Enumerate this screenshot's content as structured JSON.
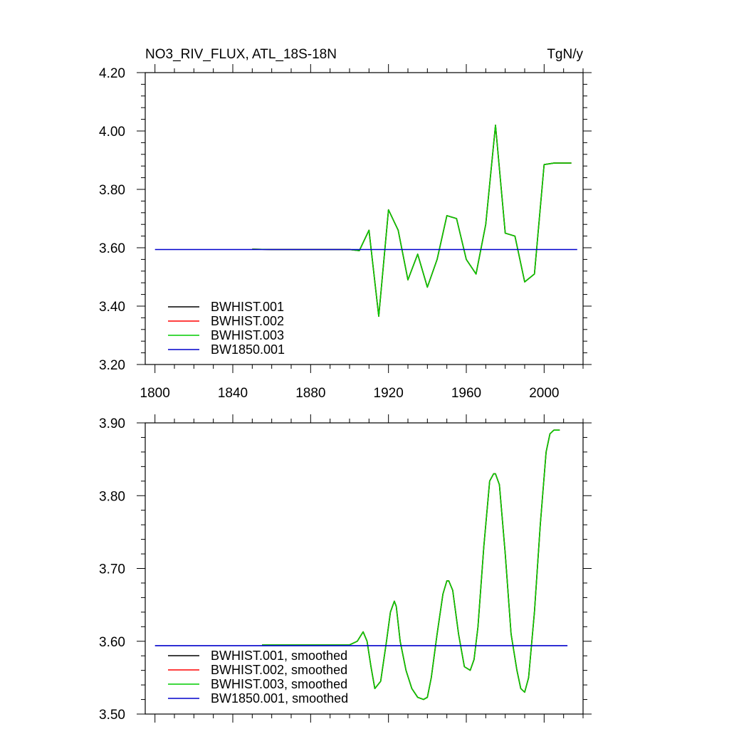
{
  "figure": {
    "title_left": "NO3_RIV_FLUX, ATL_18S-18N",
    "title_right": "TgN/y"
  },
  "colors": {
    "BWHIST.001": "#000000",
    "BWHIST.002": "#ff0000",
    "BWHIST.003": "#00cc00",
    "BW1850.001": "#0000cc"
  },
  "chart_data": [
    {
      "type": "line",
      "title": "NO3_RIV_FLUX, ATL_18S-18N",
      "units": "TgN/y",
      "xlim": [
        1795,
        2020
      ],
      "ylim": [
        3.2,
        4.2
      ],
      "xticks": [
        1800,
        1840,
        1880,
        1920,
        1960,
        2000
      ],
      "xtick_labels": [
        "1800",
        "1840",
        "1880",
        "1920",
        "1960",
        "2000"
      ],
      "yticks": [
        3.2,
        3.4,
        3.6,
        3.8,
        4.0,
        4.2
      ],
      "ytick_labels": [
        "3.20",
        "3.40",
        "3.60",
        "3.80",
        "4.00",
        "4.20"
      ],
      "legend_position": "bottom-left",
      "grid": false,
      "series": [
        {
          "name": "BWHIST.001",
          "color": "#000000",
          "x": [
            1850,
            1860,
            1870,
            1880,
            1890,
            1900,
            1905,
            1910,
            1915,
            1920,
            1925,
            1930,
            1935,
            1940,
            1945,
            1950,
            1955,
            1960,
            1965,
            1970,
            1975,
            1980,
            1985,
            1990,
            1995,
            2000,
            2005,
            2010,
            2014
          ],
          "y": [
            3.595,
            3.594,
            3.594,
            3.594,
            3.594,
            3.594,
            3.59,
            3.66,
            3.365,
            3.73,
            3.66,
            3.49,
            3.578,
            3.465,
            3.56,
            3.71,
            3.7,
            3.56,
            3.51,
            3.68,
            4.02,
            3.65,
            3.64,
            3.483,
            3.51,
            3.885,
            3.89,
            3.89,
            3.89
          ]
        },
        {
          "name": "BWHIST.002",
          "color": "#ff0000",
          "x": [
            1850,
            1860,
            1870,
            1880,
            1890,
            1900,
            1905,
            1910,
            1915,
            1920,
            1925,
            1930,
            1935,
            1940,
            1945,
            1950,
            1955,
            1960,
            1965,
            1970,
            1975,
            1980,
            1985,
            1990,
            1995,
            2000,
            2005,
            2010,
            2014
          ],
          "y": [
            3.595,
            3.594,
            3.594,
            3.594,
            3.594,
            3.594,
            3.59,
            3.66,
            3.365,
            3.73,
            3.66,
            3.49,
            3.578,
            3.465,
            3.56,
            3.71,
            3.7,
            3.56,
            3.51,
            3.68,
            4.02,
            3.65,
            3.64,
            3.483,
            3.51,
            3.885,
            3.89,
            3.89,
            3.89
          ]
        },
        {
          "name": "BWHIST.003",
          "color": "#00cc00",
          "x": [
            1850,
            1860,
            1870,
            1880,
            1890,
            1900,
            1905,
            1910,
            1915,
            1920,
            1925,
            1930,
            1935,
            1940,
            1945,
            1950,
            1955,
            1960,
            1965,
            1970,
            1975,
            1980,
            1985,
            1990,
            1995,
            2000,
            2005,
            2010,
            2014
          ],
          "y": [
            3.595,
            3.594,
            3.594,
            3.594,
            3.594,
            3.594,
            3.59,
            3.66,
            3.365,
            3.73,
            3.66,
            3.49,
            3.578,
            3.465,
            3.56,
            3.71,
            3.7,
            3.56,
            3.51,
            3.68,
            4.02,
            3.65,
            3.64,
            3.483,
            3.51,
            3.885,
            3.89,
            3.89,
            3.89
          ]
        },
        {
          "name": "BW1850.001",
          "color": "#0000cc",
          "x": [
            1800,
            2017
          ],
          "y": [
            3.594,
            3.594
          ]
        }
      ]
    },
    {
      "type": "line",
      "xlim": [
        1795,
        2020
      ],
      "ylim": [
        3.5,
        3.9
      ],
      "xticks": [
        1800,
        1840,
        1880,
        1920,
        1960,
        2000
      ],
      "yticks": [
        3.5,
        3.6,
        3.7,
        3.8,
        3.9
      ],
      "ytick_labels": [
        "3.50",
        "3.60",
        "3.70",
        "3.80",
        "3.90"
      ],
      "legend_position": "bottom-left",
      "grid": false,
      "series": [
        {
          "name": "BWHIST.001, smoothed",
          "color": "#000000",
          "x": [
            1855,
            1870,
            1885,
            1900,
            1904,
            1907,
            1909,
            1911,
            1913,
            1916,
            1919,
            1921,
            1923,
            1924,
            1926,
            1929,
            1932,
            1935,
            1938,
            1940,
            1942,
            1945,
            1948,
            1950,
            1951,
            1953,
            1956,
            1959,
            1962,
            1964,
            1966,
            1969,
            1972,
            1974,
            1975,
            1977,
            1980,
            1983,
            1986,
            1988,
            1990,
            1992,
            1995,
            1998,
            2001,
            2003,
            2005,
            2008
          ],
          "y": [
            3.595,
            3.595,
            3.595,
            3.595,
            3.6,
            3.613,
            3.6,
            3.565,
            3.535,
            3.545,
            3.6,
            3.64,
            3.655,
            3.648,
            3.6,
            3.56,
            3.535,
            3.523,
            3.52,
            3.523,
            3.55,
            3.61,
            3.665,
            3.683,
            3.683,
            3.67,
            3.61,
            3.565,
            3.56,
            3.575,
            3.62,
            3.73,
            3.82,
            3.83,
            3.83,
            3.815,
            3.72,
            3.61,
            3.56,
            3.535,
            3.53,
            3.55,
            3.64,
            3.76,
            3.86,
            3.885,
            3.89,
            3.89
          ]
        },
        {
          "name": "BWHIST.002, smoothed",
          "color": "#ff0000",
          "x": [
            1855,
            1870,
            1885,
            1900,
            1904,
            1907,
            1909,
            1911,
            1913,
            1916,
            1919,
            1921,
            1923,
            1924,
            1926,
            1929,
            1932,
            1935,
            1938,
            1940,
            1942,
            1945,
            1948,
            1950,
            1951,
            1953,
            1956,
            1959,
            1962,
            1964,
            1966,
            1969,
            1972,
            1974,
            1975,
            1977,
            1980,
            1983,
            1986,
            1988,
            1990,
            1992,
            1995,
            1998,
            2001,
            2003,
            2005,
            2008
          ],
          "y": [
            3.595,
            3.595,
            3.595,
            3.595,
            3.6,
            3.613,
            3.6,
            3.565,
            3.535,
            3.545,
            3.6,
            3.64,
            3.655,
            3.648,
            3.6,
            3.56,
            3.535,
            3.523,
            3.52,
            3.523,
            3.55,
            3.61,
            3.665,
            3.683,
            3.683,
            3.67,
            3.61,
            3.565,
            3.56,
            3.575,
            3.62,
            3.73,
            3.82,
            3.83,
            3.83,
            3.815,
            3.72,
            3.61,
            3.56,
            3.535,
            3.53,
            3.55,
            3.64,
            3.76,
            3.86,
            3.885,
            3.89,
            3.89
          ]
        },
        {
          "name": "BWHIST.003, smoothed",
          "color": "#00cc00",
          "x": [
            1855,
            1870,
            1885,
            1900,
            1904,
            1907,
            1909,
            1911,
            1913,
            1916,
            1919,
            1921,
            1923,
            1924,
            1926,
            1929,
            1932,
            1935,
            1938,
            1940,
            1942,
            1945,
            1948,
            1950,
            1951,
            1953,
            1956,
            1959,
            1962,
            1964,
            1966,
            1969,
            1972,
            1974,
            1975,
            1977,
            1980,
            1983,
            1986,
            1988,
            1990,
            1992,
            1995,
            1998,
            2001,
            2003,
            2005,
            2008
          ],
          "y": [
            3.595,
            3.595,
            3.595,
            3.595,
            3.6,
            3.613,
            3.6,
            3.565,
            3.535,
            3.545,
            3.6,
            3.64,
            3.655,
            3.648,
            3.6,
            3.56,
            3.535,
            3.523,
            3.52,
            3.523,
            3.55,
            3.61,
            3.665,
            3.683,
            3.683,
            3.67,
            3.61,
            3.565,
            3.56,
            3.575,
            3.62,
            3.73,
            3.82,
            3.83,
            3.83,
            3.815,
            3.72,
            3.61,
            3.56,
            3.535,
            3.53,
            3.55,
            3.64,
            3.76,
            3.86,
            3.885,
            3.89,
            3.89
          ]
        },
        {
          "name": "BW1850.001, smoothed",
          "color": "#0000cc",
          "x": [
            1800,
            2012
          ],
          "y": [
            3.594,
            3.594
          ]
        }
      ]
    }
  ]
}
